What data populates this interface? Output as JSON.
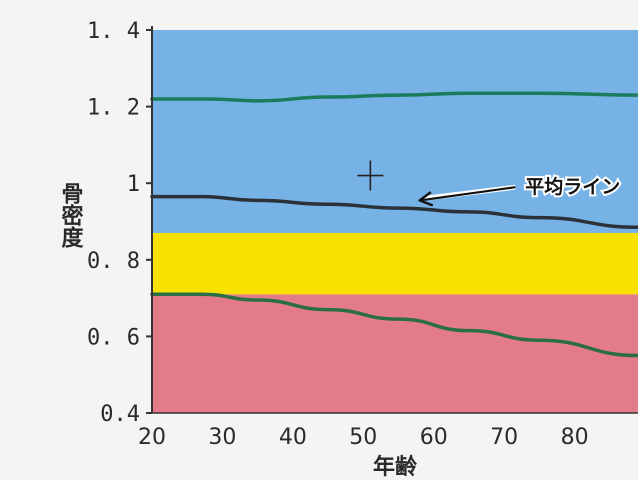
{
  "chart_data": {
    "type": "line",
    "xlabel": "年齢",
    "ylabel": "骨密度",
    "xlim": [
      20,
      89
    ],
    "ylim": [
      0.4,
      1.4
    ],
    "x_ticks": [
      20,
      30,
      40,
      50,
      60,
      70,
      80
    ],
    "y_ticks": [
      {
        "value": 0.4,
        "label": "0.4"
      },
      {
        "value": 0.6,
        "label": "0. 6"
      },
      {
        "value": 0.8,
        "label": "0. 8"
      },
      {
        "value": 1.0,
        "label": "1"
      },
      {
        "value": 1.2,
        "label": "1. 2"
      },
      {
        "value": 1.4,
        "label": "1. 4"
      }
    ],
    "grid": false,
    "bands": [
      {
        "from": 0.4,
        "to": 0.71,
        "color": "#e37b88"
      },
      {
        "from": 0.71,
        "to": 0.87,
        "color": "#f9e100"
      },
      {
        "from": 0.87,
        "to": 1.4,
        "color": "#77b2e6"
      }
    ],
    "series": [
      {
        "role": "upper",
        "color": "#1b7b5c",
        "x": [
          20,
          28,
          35,
          45,
          55,
          65,
          75,
          89
        ],
        "values": [
          1.22,
          1.22,
          1.215,
          1.225,
          1.23,
          1.235,
          1.235,
          1.23
        ]
      },
      {
        "name": "平均ライン",
        "color": "#2b3139",
        "x": [
          20,
          27,
          35,
          45,
          55,
          65,
          75,
          89
        ],
        "values": [
          0.965,
          0.965,
          0.955,
          0.945,
          0.935,
          0.925,
          0.91,
          0.885
        ]
      },
      {
        "role": "lower",
        "color": "#2a6e47",
        "x": [
          20,
          27,
          35,
          45,
          55,
          65,
          75,
          89
        ],
        "values": [
          0.71,
          0.71,
          0.695,
          0.67,
          0.645,
          0.615,
          0.59,
          0.55
        ]
      }
    ],
    "marker": {
      "x": 51,
      "y": 1.02,
      "symbol": "+"
    },
    "annotations": [
      {
        "text": "平均ライン",
        "x": 73,
        "y": 1.0,
        "arrow_to": {
          "x": 58,
          "y": 0.955
        }
      }
    ]
  }
}
